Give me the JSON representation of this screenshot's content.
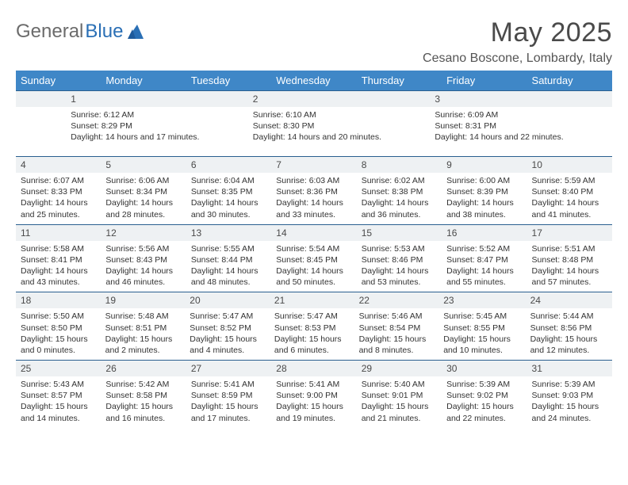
{
  "logo": {
    "text1": "General",
    "text2": "Blue"
  },
  "title": "May 2025",
  "location": "Cesano Boscone, Lombardy, Italy",
  "colors": {
    "header_bg": "#3f87c7",
    "header_text": "#ffffff",
    "daynum_bg": "#eef1f3",
    "daynum_border": "#2a5f8f",
    "body_text": "#333333",
    "title_text": "#4a4a4a",
    "logo_gray": "#6b6b6b",
    "logo_blue": "#2a6fb5"
  },
  "weekdays": [
    "Sunday",
    "Monday",
    "Tuesday",
    "Wednesday",
    "Thursday",
    "Friday",
    "Saturday"
  ],
  "weeks": [
    [
      {
        "num": "",
        "sunrise": "",
        "sunset": "",
        "daylight": ""
      },
      {
        "num": "",
        "sunrise": "",
        "sunset": "",
        "daylight": ""
      },
      {
        "num": "",
        "sunrise": "",
        "sunset": "",
        "daylight": ""
      },
      {
        "num": "",
        "sunrise": "",
        "sunset": "",
        "daylight": ""
      },
      {
        "num": "1",
        "sunrise": "Sunrise: 6:12 AM",
        "sunset": "Sunset: 8:29 PM",
        "daylight": "Daylight: 14 hours and 17 minutes."
      },
      {
        "num": "2",
        "sunrise": "Sunrise: 6:10 AM",
        "sunset": "Sunset: 8:30 PM",
        "daylight": "Daylight: 14 hours and 20 minutes."
      },
      {
        "num": "3",
        "sunrise": "Sunrise: 6:09 AM",
        "sunset": "Sunset: 8:31 PM",
        "daylight": "Daylight: 14 hours and 22 minutes."
      }
    ],
    [
      {
        "num": "4",
        "sunrise": "Sunrise: 6:07 AM",
        "sunset": "Sunset: 8:33 PM",
        "daylight": "Daylight: 14 hours and 25 minutes."
      },
      {
        "num": "5",
        "sunrise": "Sunrise: 6:06 AM",
        "sunset": "Sunset: 8:34 PM",
        "daylight": "Daylight: 14 hours and 28 minutes."
      },
      {
        "num": "6",
        "sunrise": "Sunrise: 6:04 AM",
        "sunset": "Sunset: 8:35 PM",
        "daylight": "Daylight: 14 hours and 30 minutes."
      },
      {
        "num": "7",
        "sunrise": "Sunrise: 6:03 AM",
        "sunset": "Sunset: 8:36 PM",
        "daylight": "Daylight: 14 hours and 33 minutes."
      },
      {
        "num": "8",
        "sunrise": "Sunrise: 6:02 AM",
        "sunset": "Sunset: 8:38 PM",
        "daylight": "Daylight: 14 hours and 36 minutes."
      },
      {
        "num": "9",
        "sunrise": "Sunrise: 6:00 AM",
        "sunset": "Sunset: 8:39 PM",
        "daylight": "Daylight: 14 hours and 38 minutes."
      },
      {
        "num": "10",
        "sunrise": "Sunrise: 5:59 AM",
        "sunset": "Sunset: 8:40 PM",
        "daylight": "Daylight: 14 hours and 41 minutes."
      }
    ],
    [
      {
        "num": "11",
        "sunrise": "Sunrise: 5:58 AM",
        "sunset": "Sunset: 8:41 PM",
        "daylight": "Daylight: 14 hours and 43 minutes."
      },
      {
        "num": "12",
        "sunrise": "Sunrise: 5:56 AM",
        "sunset": "Sunset: 8:43 PM",
        "daylight": "Daylight: 14 hours and 46 minutes."
      },
      {
        "num": "13",
        "sunrise": "Sunrise: 5:55 AM",
        "sunset": "Sunset: 8:44 PM",
        "daylight": "Daylight: 14 hours and 48 minutes."
      },
      {
        "num": "14",
        "sunrise": "Sunrise: 5:54 AM",
        "sunset": "Sunset: 8:45 PM",
        "daylight": "Daylight: 14 hours and 50 minutes."
      },
      {
        "num": "15",
        "sunrise": "Sunrise: 5:53 AM",
        "sunset": "Sunset: 8:46 PM",
        "daylight": "Daylight: 14 hours and 53 minutes."
      },
      {
        "num": "16",
        "sunrise": "Sunrise: 5:52 AM",
        "sunset": "Sunset: 8:47 PM",
        "daylight": "Daylight: 14 hours and 55 minutes."
      },
      {
        "num": "17",
        "sunrise": "Sunrise: 5:51 AM",
        "sunset": "Sunset: 8:48 PM",
        "daylight": "Daylight: 14 hours and 57 minutes."
      }
    ],
    [
      {
        "num": "18",
        "sunrise": "Sunrise: 5:50 AM",
        "sunset": "Sunset: 8:50 PM",
        "daylight": "Daylight: 15 hours and 0 minutes."
      },
      {
        "num": "19",
        "sunrise": "Sunrise: 5:48 AM",
        "sunset": "Sunset: 8:51 PM",
        "daylight": "Daylight: 15 hours and 2 minutes."
      },
      {
        "num": "20",
        "sunrise": "Sunrise: 5:47 AM",
        "sunset": "Sunset: 8:52 PM",
        "daylight": "Daylight: 15 hours and 4 minutes."
      },
      {
        "num": "21",
        "sunrise": "Sunrise: 5:47 AM",
        "sunset": "Sunset: 8:53 PM",
        "daylight": "Daylight: 15 hours and 6 minutes."
      },
      {
        "num": "22",
        "sunrise": "Sunrise: 5:46 AM",
        "sunset": "Sunset: 8:54 PM",
        "daylight": "Daylight: 15 hours and 8 minutes."
      },
      {
        "num": "23",
        "sunrise": "Sunrise: 5:45 AM",
        "sunset": "Sunset: 8:55 PM",
        "daylight": "Daylight: 15 hours and 10 minutes."
      },
      {
        "num": "24",
        "sunrise": "Sunrise: 5:44 AM",
        "sunset": "Sunset: 8:56 PM",
        "daylight": "Daylight: 15 hours and 12 minutes."
      }
    ],
    [
      {
        "num": "25",
        "sunrise": "Sunrise: 5:43 AM",
        "sunset": "Sunset: 8:57 PM",
        "daylight": "Daylight: 15 hours and 14 minutes."
      },
      {
        "num": "26",
        "sunrise": "Sunrise: 5:42 AM",
        "sunset": "Sunset: 8:58 PM",
        "daylight": "Daylight: 15 hours and 16 minutes."
      },
      {
        "num": "27",
        "sunrise": "Sunrise: 5:41 AM",
        "sunset": "Sunset: 8:59 PM",
        "daylight": "Daylight: 15 hours and 17 minutes."
      },
      {
        "num": "28",
        "sunrise": "Sunrise: 5:41 AM",
        "sunset": "Sunset: 9:00 PM",
        "daylight": "Daylight: 15 hours and 19 minutes."
      },
      {
        "num": "29",
        "sunrise": "Sunrise: 5:40 AM",
        "sunset": "Sunset: 9:01 PM",
        "daylight": "Daylight: 15 hours and 21 minutes."
      },
      {
        "num": "30",
        "sunrise": "Sunrise: 5:39 AM",
        "sunset": "Sunset: 9:02 PM",
        "daylight": "Daylight: 15 hours and 22 minutes."
      },
      {
        "num": "31",
        "sunrise": "Sunrise: 5:39 AM",
        "sunset": "Sunset: 9:03 PM",
        "daylight": "Daylight: 15 hours and 24 minutes."
      }
    ]
  ]
}
